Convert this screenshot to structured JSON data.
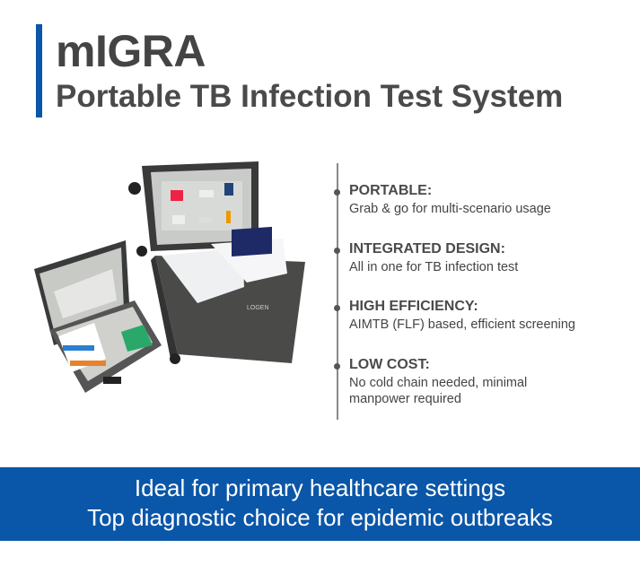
{
  "header": {
    "title": "mIGRA",
    "subtitle": "Portable TB Infection Test System",
    "accent_color": "#0a56a8"
  },
  "product_image": {
    "label": "LOGEN"
  },
  "features": [
    {
      "title": "PORTABLE:",
      "description": "Grab & go for multi-scenario usage"
    },
    {
      "title": "INTEGRATED DESIGN:",
      "description": "All in one for TB infection test"
    },
    {
      "title": "HIGH EFFICIENCY:",
      "description": "AIMTB (FLF) based, efficient screening"
    },
    {
      "title": "LOW COST:",
      "description": "No cold chain needed, minimal manpower required"
    }
  ],
  "banner": {
    "line1": "Ideal for primary healthcare settings",
    "line2": "Top diagnostic choice for epidemic outbreaks",
    "color": "#0a56a8"
  }
}
